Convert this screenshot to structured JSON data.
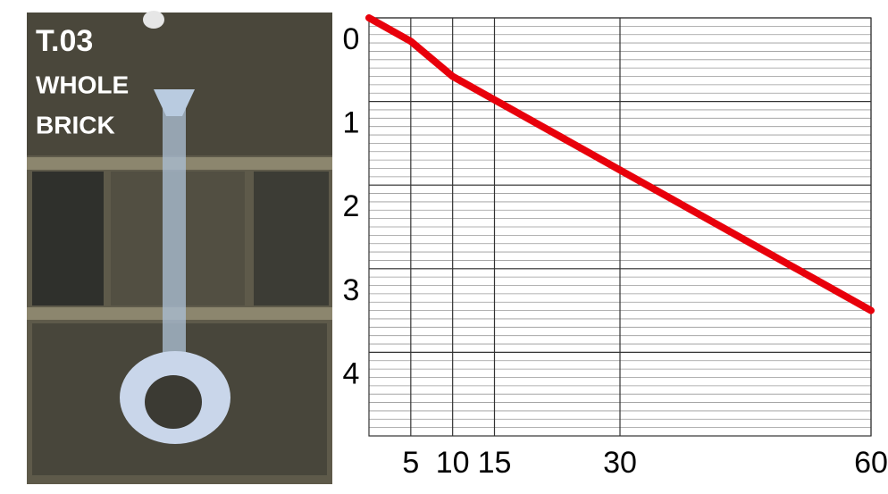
{
  "photo": {
    "labels": [
      "T.03",
      "WHOLE",
      "BRICK"
    ]
  },
  "chart_data": {
    "type": "line",
    "x": [
      0,
      5,
      10,
      15,
      30,
      45,
      60
    ],
    "series": [
      {
        "color": "#e8000b",
        "values": [
          0,
          0.28,
          0.7,
          0.98,
          1.82,
          2.66,
          3.5
        ]
      }
    ],
    "xlim": [
      0,
      60
    ],
    "xticks": [
      5,
      10,
      15,
      30,
      60
    ],
    "ylim": [
      0,
      5
    ],
    "yticks": [
      0,
      1,
      2,
      3,
      4
    ],
    "y_inverted": true,
    "grid": true
  }
}
